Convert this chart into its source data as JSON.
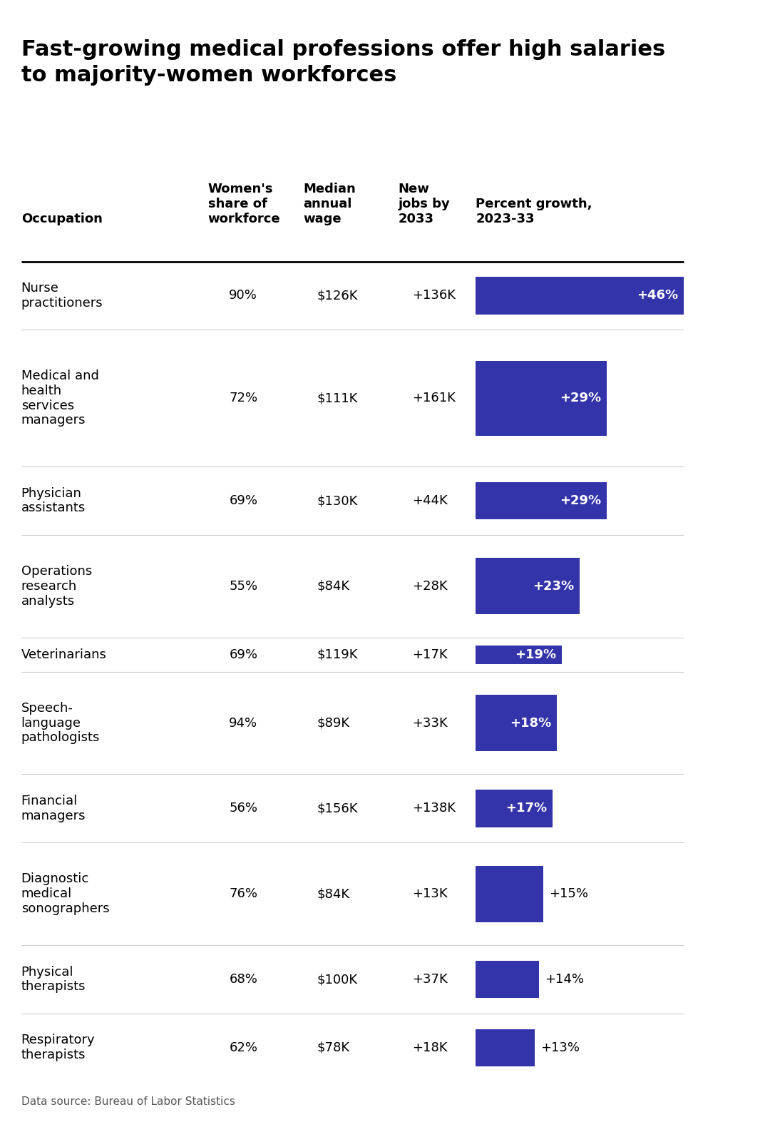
{
  "title": "Fast-growing medical professions offer high salaries\nto majority-women workforces",
  "footer": "Data source: Bureau of Labor Statistics",
  "col_headers": [
    "Women's\nshare of\nworkforce",
    "Median\nannual\nwage",
    "New\njobs by\n2033",
    "Percent growth,\n2023-33"
  ],
  "col_header_row_label": "Occupation",
  "occupations": [
    "Nurse\npractitioners",
    "Medical and\nhealth\nservices\nmanagers",
    "Physician\nassistants",
    "Operations\nresearch\nanalysts",
    "Veterinarians",
    "Speech-\nlanguage\npathologists",
    "Financial\nmanagers",
    "Diagnostic\nmedical\nsonographers",
    "Physical\ntherapists",
    "Respiratory\ntherapists"
  ],
  "women_share": [
    "90%",
    "72%",
    "69%",
    "55%",
    "69%",
    "94%",
    "56%",
    "76%",
    "68%",
    "62%"
  ],
  "median_wage": [
    "$126K",
    "$111K",
    "$130K",
    "$84K",
    "$119K",
    "$89K",
    "$156K",
    "$84K",
    "$100K",
    "$78K"
  ],
  "new_jobs": [
    "+136K",
    "+161K",
    "+44K",
    "+28K",
    "+17K",
    "+33K",
    "+138K",
    "+13K",
    "+37K",
    "+18K"
  ],
  "pct_growth": [
    46,
    29,
    29,
    23,
    19,
    18,
    17,
    15,
    14,
    13
  ],
  "pct_growth_labels": [
    "+46%",
    "+29%",
    "+29%",
    "+23%",
    "+19%",
    "+18%",
    "+17%",
    "+15%",
    "+14%",
    "+13%"
  ],
  "bar_color": "#3333aa",
  "bar_max": 46,
  "label_inside_threshold": 17,
  "background_color": "#ffffff",
  "title_fontsize": 22,
  "header_fontsize": 13,
  "cell_fontsize": 13,
  "footer_fontsize": 11
}
